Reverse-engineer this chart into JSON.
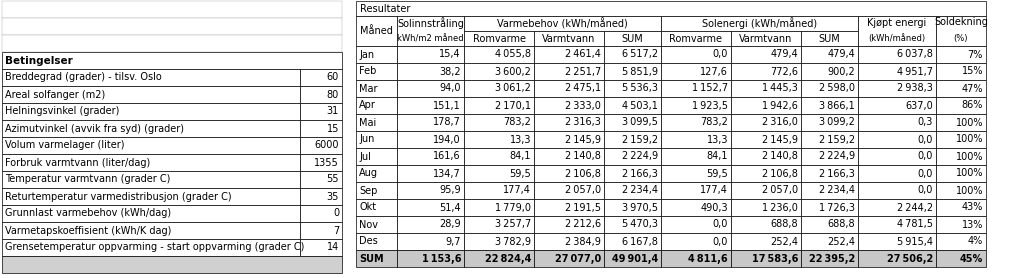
{
  "betingelser_labels": [
    "Breddegrad (grader) - tilsv. Oslo",
    "Areal solfanger (m2)",
    "Helningsvinkel (grader)",
    "Azimutvinkel (avvik fra syd) (grader)",
    "Volum varmelager (liter)",
    "Forbruk varmtvann (liter/dag)",
    "Temperatur varmtvann (grader C)",
    "Returtemperatur varmedistribusjon (grader C)",
    "Grunnlast varmebehov (kWh/dag)",
    "Varmetapskoeffisient (kWh/K dag)",
    "Grensetemperatur oppvarming - start oppvarming (grader C)"
  ],
  "betingelser_values": [
    60,
    80,
    31,
    15,
    6000,
    1355,
    55,
    35,
    0,
    7,
    14
  ],
  "months": [
    "Jan",
    "Feb",
    "Mar",
    "Apr",
    "Mai",
    "Jun",
    "Jul",
    "Aug",
    "Sep",
    "Okt",
    "Nov",
    "Des",
    "SUM"
  ],
  "solinnstraling": [
    15.4,
    38.2,
    94.0,
    151.1,
    178.7,
    194.0,
    161.6,
    134.7,
    95.9,
    51.4,
    28.9,
    9.7,
    1153.6
  ],
  "varmebehov_romvarme": [
    4055.8,
    3600.2,
    3061.2,
    2170.1,
    783.2,
    13.3,
    84.1,
    59.5,
    177.4,
    1779.0,
    3257.7,
    3782.9,
    22824.4
  ],
  "varmebehov_varmtvann": [
    2461.4,
    2251.7,
    2475.1,
    2333.0,
    2316.3,
    2145.9,
    2140.8,
    2106.8,
    2057.0,
    2191.5,
    2212.6,
    2384.9,
    27077.0
  ],
  "varmebehov_sum": [
    6517.2,
    5851.9,
    5536.3,
    4503.1,
    3099.5,
    2159.2,
    2224.9,
    2166.3,
    2234.4,
    3970.5,
    5470.3,
    6167.8,
    49901.4
  ],
  "solenergi_romvarme": [
    0.0,
    127.6,
    1152.7,
    1923.5,
    783.2,
    13.3,
    84.1,
    59.5,
    177.4,
    490.3,
    0.0,
    0.0,
    4811.6
  ],
  "solenergi_varmtvann": [
    479.4,
    772.6,
    1445.3,
    1942.6,
    2316.0,
    2145.9,
    2140.8,
    2106.8,
    2057.0,
    1236.0,
    688.8,
    252.4,
    17583.6
  ],
  "solenergi_sum": [
    479.4,
    900.2,
    2598.0,
    3866.1,
    3099.2,
    2159.2,
    2224.9,
    2166.3,
    2234.4,
    1726.3,
    688.8,
    252.4,
    22395.2
  ],
  "kjopt_energi": [
    6037.8,
    4951.7,
    2938.3,
    637.0,
    0.3,
    0.0,
    0.0,
    0.0,
    0.0,
    2244.2,
    4781.5,
    5915.4,
    27506.2
  ],
  "soldekning": [
    "7%",
    "15%",
    "47%",
    "86%",
    "100%",
    "100%",
    "100%",
    "100%",
    "100%",
    "43%",
    "13%",
    "4%",
    "45%"
  ],
  "font_size": 7.0,
  "bold_size": 7.5
}
